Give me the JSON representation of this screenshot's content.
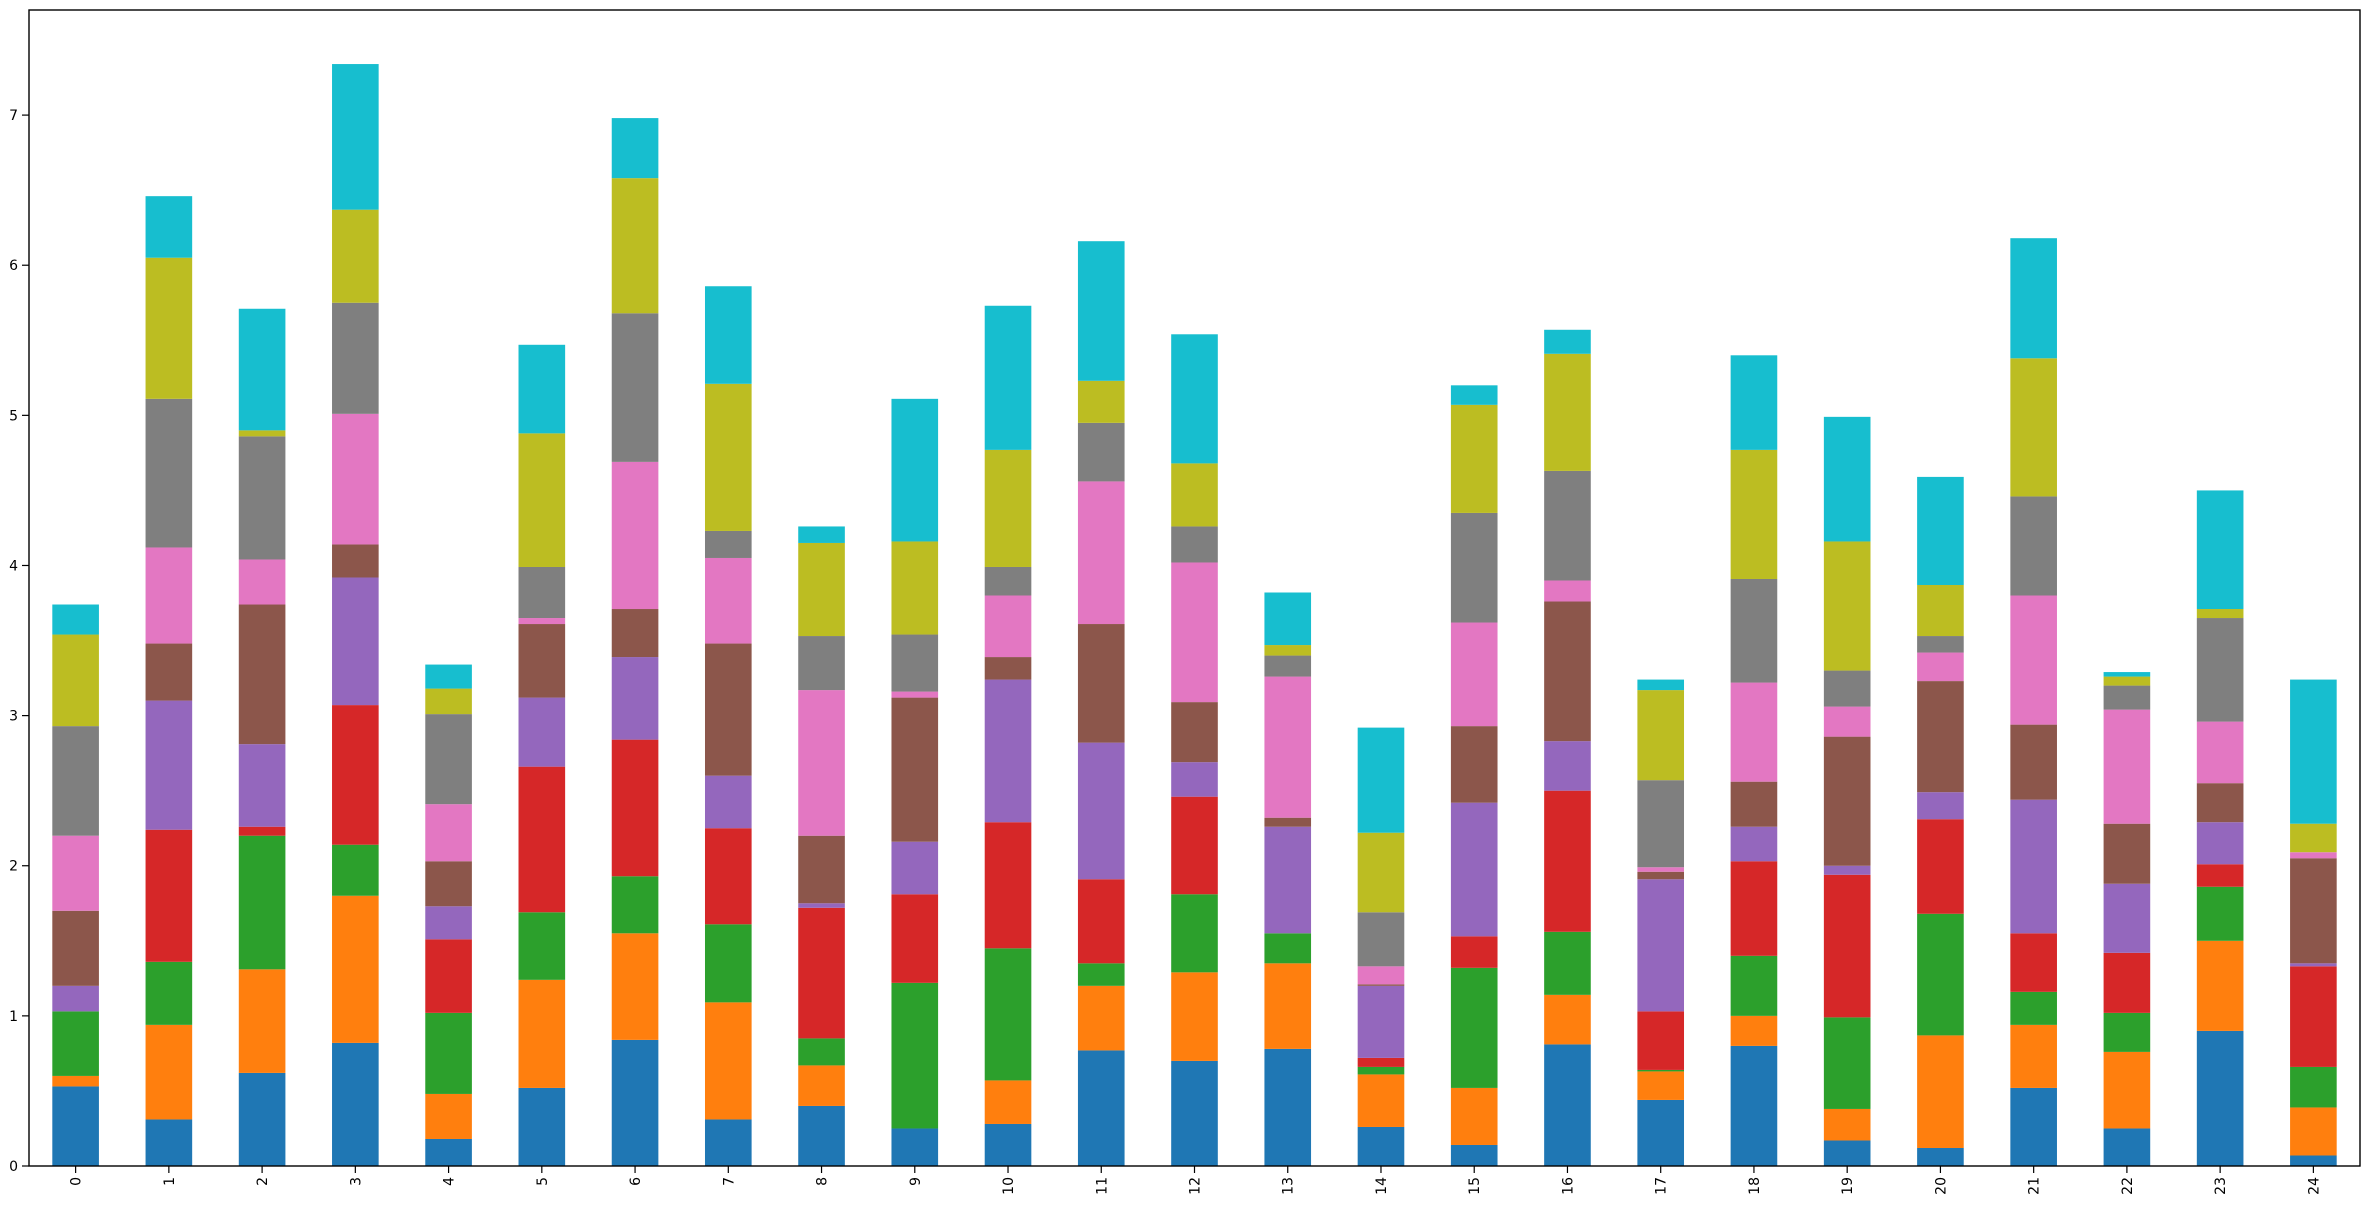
{
  "chart_data": {
    "type": "bar",
    "stacked": true,
    "title": "",
    "xlabel": "",
    "ylabel": "",
    "categories": [
      "0",
      "1",
      "2",
      "3",
      "4",
      "5",
      "6",
      "7",
      "8",
      "9",
      "10",
      "11",
      "12",
      "13",
      "14",
      "15",
      "16",
      "17",
      "18",
      "19",
      "20",
      "21",
      "22",
      "23",
      "24"
    ],
    "yticks": [
      "0",
      "1",
      "2",
      "3",
      "4",
      "5",
      "6",
      "7"
    ],
    "ylim": [
      0,
      7.7
    ],
    "grid": false,
    "legend": "none",
    "series": [
      {
        "color": "#1f77b4",
        "values": [
          0.53,
          0.31,
          0.62,
          0.82,
          0.18,
          0.52,
          0.84,
          0.31,
          0.4,
          0.25,
          0.28,
          0.77,
          0.7,
          0.78,
          0.26,
          0.14,
          0.81,
          0.44,
          0.8,
          0.17,
          0.12,
          0.52,
          0.25,
          0.9,
          0.07
        ]
      },
      {
        "color": "#ff7f0e",
        "values": [
          0.07,
          0.63,
          0.69,
          0.98,
          0.3,
          0.72,
          0.71,
          0.78,
          0.27,
          0.0,
          0.29,
          0.43,
          0.59,
          0.57,
          0.35,
          0.38,
          0.33,
          0.19,
          0.2,
          0.21,
          0.75,
          0.42,
          0.51,
          0.6,
          0.32
        ]
      },
      {
        "color": "#2ca02c",
        "values": [
          0.43,
          0.42,
          0.89,
          0.34,
          0.54,
          0.45,
          0.38,
          0.52,
          0.18,
          0.97,
          0.88,
          0.15,
          0.52,
          0.2,
          0.05,
          0.8,
          0.42,
          0.01,
          0.4,
          0.61,
          0.81,
          0.22,
          0.26,
          0.36,
          0.27
        ]
      },
      {
        "color": "#d62728",
        "values": [
          0.0,
          0.88,
          0.06,
          0.93,
          0.49,
          0.97,
          0.91,
          0.64,
          0.87,
          0.59,
          0.84,
          0.56,
          0.65,
          0.0,
          0.06,
          0.21,
          0.94,
          0.39,
          0.63,
          0.95,
          0.63,
          0.39,
          0.4,
          0.15,
          0.67
        ]
      },
      {
        "color": "#9467bd",
        "values": [
          0.17,
          0.86,
          0.55,
          0.85,
          0.22,
          0.46,
          0.55,
          0.35,
          0.03,
          0.35,
          0.95,
          0.91,
          0.23,
          0.71,
          0.48,
          0.89,
          0.33,
          0.88,
          0.23,
          0.06,
          0.18,
          0.89,
          0.46,
          0.28,
          0.02
        ]
      },
      {
        "color": "#8c564b",
        "values": [
          0.5,
          0.38,
          0.93,
          0.22,
          0.3,
          0.49,
          0.32,
          0.88,
          0.45,
          0.96,
          0.15,
          0.79,
          0.4,
          0.06,
          0.01,
          0.51,
          0.93,
          0.05,
          0.3,
          0.86,
          0.74,
          0.5,
          0.4,
          0.26,
          0.7
        ]
      },
      {
        "color": "#e377c2",
        "values": [
          0.5,
          0.64,
          0.3,
          0.87,
          0.38,
          0.04,
          0.98,
          0.57,
          0.97,
          0.04,
          0.41,
          0.95,
          0.93,
          0.94,
          0.12,
          0.69,
          0.14,
          0.03,
          0.66,
          0.2,
          0.19,
          0.86,
          0.76,
          0.41,
          0.04
        ]
      },
      {
        "color": "#7f7f7f",
        "values": [
          0.73,
          0.99,
          0.82,
          0.74,
          0.6,
          0.34,
          0.99,
          0.18,
          0.36,
          0.38,
          0.19,
          0.39,
          0.24,
          0.14,
          0.36,
          0.73,
          0.73,
          0.58,
          0.69,
          0.24,
          0.11,
          0.66,
          0.16,
          0.69,
          0.0
        ]
      },
      {
        "color": "#bcbd22",
        "values": [
          0.61,
          0.94,
          0.04,
          0.62,
          0.17,
          0.89,
          0.9,
          0.98,
          0.62,
          0.62,
          0.78,
          0.28,
          0.42,
          0.07,
          0.53,
          0.72,
          0.78,
          0.6,
          0.86,
          0.86,
          0.34,
          0.92,
          0.06,
          0.06,
          0.19
        ]
      },
      {
        "color": "#17becf",
        "values": [
          0.2,
          0.41,
          0.81,
          0.97,
          0.16,
          0.59,
          0.4,
          0.65,
          0.11,
          0.95,
          0.96,
          0.93,
          0.86,
          0.35,
          0.7,
          0.13,
          0.16,
          0.07,
          0.63,
          0.83,
          0.72,
          0.8,
          0.03,
          0.79,
          0.96
        ]
      }
    ]
  }
}
